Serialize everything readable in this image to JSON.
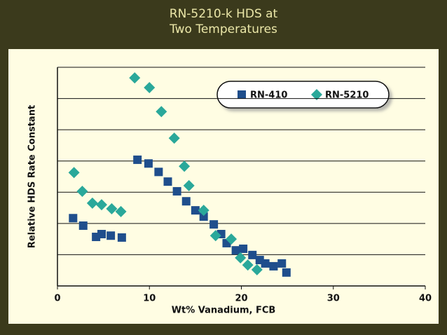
{
  "chart_data": {
    "type": "scatter",
    "title": [
      "RN-5210-k HDS at",
      "Two Temperatures"
    ],
    "xlabel": "Wt% Vanadium, FCB",
    "ylabel": "Relative HDS Rate Constant",
    "xlim": [
      0,
      40
    ],
    "xticks": [
      0,
      10,
      20,
      30,
      40
    ],
    "ylim": [
      0,
      7
    ],
    "ygrid": [
      1,
      2,
      3,
      4,
      5,
      6,
      7
    ],
    "legend": "top-right",
    "series": [
      {
        "name": "RN-410",
        "color": "#1f4e8c",
        "marker": "square",
        "x": [
          1.7,
          2.8,
          4.2,
          4.8,
          5.8,
          7.0,
          8.7,
          9.9,
          11.0,
          12.0,
          13.0,
          14.0,
          15.0,
          15.9,
          17.0,
          17.8,
          18.4,
          19.4,
          20.2,
          21.2,
          22.0,
          22.6,
          23.5,
          24.4,
          24.9
        ],
        "values": [
          2.17,
          1.93,
          1.57,
          1.66,
          1.61,
          1.55,
          4.04,
          3.92,
          3.65,
          3.34,
          3.03,
          2.71,
          2.42,
          2.22,
          1.97,
          1.66,
          1.37,
          1.14,
          1.19,
          0.99,
          0.83,
          0.72,
          0.63,
          0.72,
          0.43
        ]
      },
      {
        "name": "RN-5210",
        "color": "#2aa89a",
        "marker": "diamond",
        "x": [
          1.8,
          2.7,
          3.8,
          4.8,
          5.9,
          6.9,
          8.4,
          10.0,
          11.3,
          12.7,
          13.8,
          14.3,
          15.9,
          17.2,
          18.9,
          19.9,
          20.7,
          21.7
        ],
        "values": [
          3.63,
          3.03,
          2.65,
          2.6,
          2.47,
          2.38,
          6.66,
          6.35,
          5.58,
          4.73,
          3.83,
          3.21,
          2.42,
          1.61,
          1.5,
          0.9,
          0.67,
          0.52
        ]
      }
    ]
  }
}
